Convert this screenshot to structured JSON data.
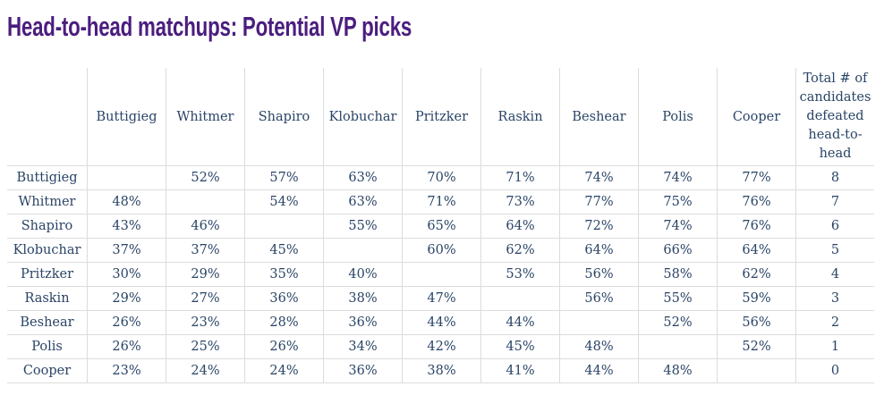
{
  "title": "Head-to-head matchups: Potential VP picks",
  "chart_data": {
    "type": "table",
    "title": "Head-to-head matchups: Potential VP picks",
    "columns": [
      "Buttigieg",
      "Whitmer",
      "Shapiro",
      "Klobuchar",
      "Pritzker",
      "Raskin",
      "Beshear",
      "Polis",
      "Cooper"
    ],
    "total_header": "Total # of candidates defeated head-to-head",
    "rows": [
      {
        "name": "Buttigieg",
        "values": [
          "",
          "52%",
          "57%",
          "63%",
          "70%",
          "71%",
          "74%",
          "74%",
          "77%"
        ],
        "total": "8"
      },
      {
        "name": "Whitmer",
        "values": [
          "48%",
          "",
          "54%",
          "63%",
          "71%",
          "73%",
          "77%",
          "75%",
          "76%"
        ],
        "total": "7"
      },
      {
        "name": "Shapiro",
        "values": [
          "43%",
          "46%",
          "",
          "55%",
          "65%",
          "64%",
          "72%",
          "74%",
          "76%"
        ],
        "total": "6"
      },
      {
        "name": "Klobuchar",
        "values": [
          "37%",
          "37%",
          "45%",
          "",
          "60%",
          "62%",
          "64%",
          "66%",
          "64%"
        ],
        "total": "5"
      },
      {
        "name": "Pritzker",
        "values": [
          "30%",
          "29%",
          "35%",
          "40%",
          "",
          "53%",
          "56%",
          "58%",
          "62%"
        ],
        "total": "4"
      },
      {
        "name": "Raskin",
        "values": [
          "29%",
          "27%",
          "36%",
          "38%",
          "47%",
          "",
          "56%",
          "55%",
          "59%"
        ],
        "total": "3"
      },
      {
        "name": "Beshear",
        "values": [
          "26%",
          "23%",
          "28%",
          "36%",
          "44%",
          "44%",
          "",
          "52%",
          "56%"
        ],
        "total": "2"
      },
      {
        "name": "Polis",
        "values": [
          "26%",
          "25%",
          "26%",
          "34%",
          "42%",
          "45%",
          "48%",
          "",
          "52%"
        ],
        "total": "1"
      },
      {
        "name": "Cooper",
        "values": [
          "23%",
          "24%",
          "24%",
          "36%",
          "38%",
          "41%",
          "44%",
          "48%",
          ""
        ],
        "total": "0"
      }
    ]
  }
}
